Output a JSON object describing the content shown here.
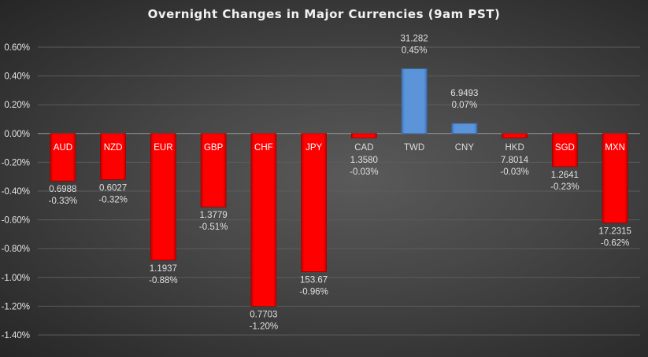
{
  "chart_data": {
    "type": "bar",
    "title": "Overnight Changes in Major Currencies (9am PST)",
    "xlabel": "",
    "ylabel": "",
    "ylim": [
      -1.4,
      0.6
    ],
    "y_ticks": [
      "0.60%",
      "0.40%",
      "0.20%",
      "0.00%",
      "-0.20%",
      "-0.40%",
      "-0.60%",
      "-0.80%",
      "-1.00%",
      "-1.20%",
      "-1.40%"
    ],
    "y_tick_values": [
      0.6,
      0.4,
      0.2,
      0,
      -0.2,
      -0.4,
      -0.6,
      -0.8,
      -1.0,
      -1.2,
      -1.4
    ],
    "grid": true,
    "legend": "none",
    "categories": [
      "AUD",
      "NZD",
      "EUR",
      "GBP",
      "CHF",
      "JPY",
      "CAD",
      "TWD",
      "CNY",
      "HKD",
      "SGD",
      "MXN"
    ],
    "values": [
      -0.33,
      -0.32,
      -0.88,
      -0.51,
      -1.2,
      -0.96,
      -0.03,
      0.45,
      0.07,
      -0.03,
      -0.23,
      -0.62
    ],
    "value_labels": [
      "-0.33%",
      "-0.32%",
      "-0.88%",
      "-0.51%",
      "-1.20%",
      "-0.96%",
      "-0.03%",
      "0.45%",
      "0.07%",
      "-0.03%",
      "-0.23%",
      "-0.62%"
    ],
    "rates": [
      "0.6988",
      "0.6027",
      "1.1937",
      "1.3779",
      "0.7703",
      "153.67",
      "1.3580",
      "31.282",
      "6.9493",
      "7.8014",
      "1.2641",
      "17.2315"
    ],
    "colors": {
      "negative": "#ff0000",
      "positive": "#5b94d9",
      "background": "#444444",
      "text": "#e0e0e0"
    }
  }
}
